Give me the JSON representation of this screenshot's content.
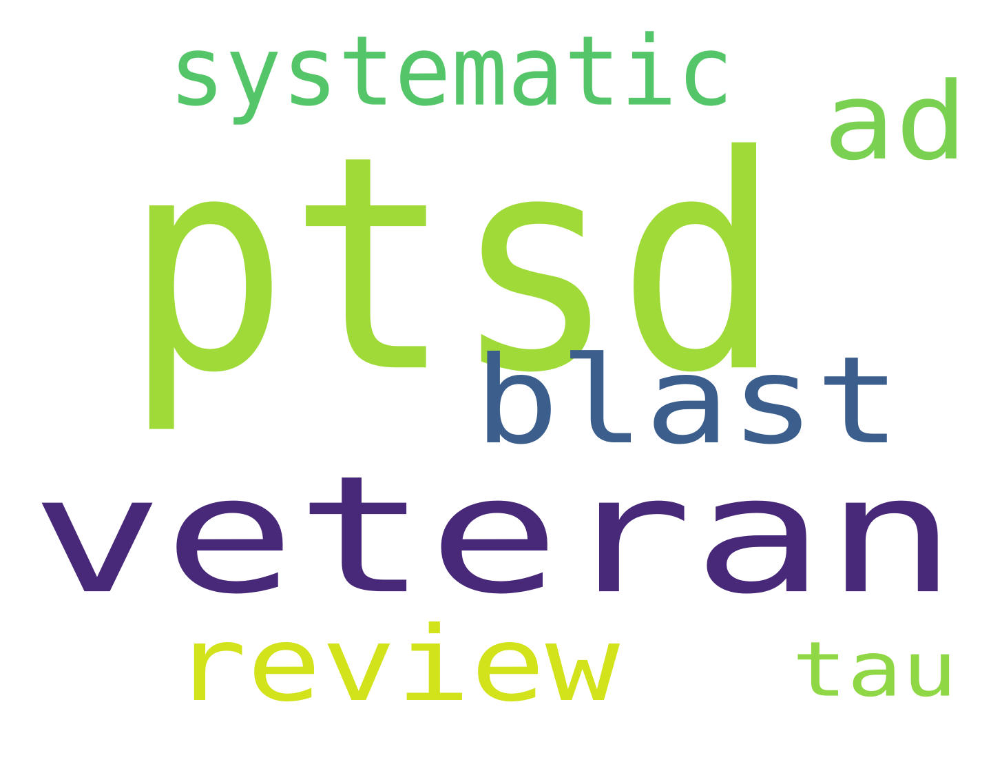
{
  "words": [
    {
      "text": "ptsd",
      "color": "#a0da39"
    },
    {
      "text": "veteran",
      "color": "#482878"
    },
    {
      "text": "blast",
      "color": "#3b5e8d"
    },
    {
      "text": "systematic",
      "color": "#54c568"
    },
    {
      "text": "ad",
      "color": "#7ad151"
    },
    {
      "text": "review",
      "color": "#d2e21b"
    },
    {
      "text": "tau",
      "color": "#8fd744"
    }
  ]
}
